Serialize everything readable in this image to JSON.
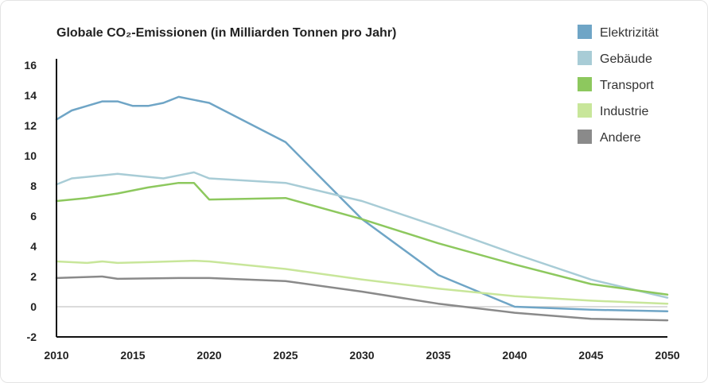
{
  "chart_data": {
    "type": "line",
    "title": "Globale CO₂-Emissionen (in Milliarden Tonnen pro Jahr)",
    "xlabel": "",
    "ylabel": "",
    "xlim": [
      2010,
      2050
    ],
    "ylim": [
      -2,
      16
    ],
    "x_ticks": [
      2010,
      2015,
      2020,
      2025,
      2030,
      2035,
      2040,
      2045,
      2050
    ],
    "y_ticks": [
      -2,
      0,
      2,
      4,
      6,
      8,
      10,
      12,
      14,
      16
    ],
    "grid": false,
    "legend_position": "top-right",
    "series": [
      {
        "name": "Elektrizität",
        "color": "#6fa5c6",
        "points": [
          [
            2010,
            12.4
          ],
          [
            2011,
            13.0
          ],
          [
            2012,
            13.3
          ],
          [
            2013,
            13.6
          ],
          [
            2014,
            13.6
          ],
          [
            2015,
            13.3
          ],
          [
            2016,
            13.3
          ],
          [
            2017,
            13.5
          ],
          [
            2018,
            13.9
          ],
          [
            2019,
            13.7
          ],
          [
            2020,
            13.5
          ],
          [
            2025,
            10.9
          ],
          [
            2030,
            5.8
          ],
          [
            2035,
            2.1
          ],
          [
            2040,
            0.0
          ],
          [
            2045,
            -0.2
          ],
          [
            2050,
            -0.3
          ]
        ]
      },
      {
        "name": "Gebäude",
        "color": "#a8ccd6",
        "points": [
          [
            2010,
            8.1
          ],
          [
            2011,
            8.5
          ],
          [
            2012,
            8.6
          ],
          [
            2013,
            8.7
          ],
          [
            2014,
            8.8
          ],
          [
            2015,
            8.7
          ],
          [
            2016,
            8.6
          ],
          [
            2017,
            8.5
          ],
          [
            2018,
            8.7
          ],
          [
            2019,
            8.9
          ],
          [
            2020,
            8.5
          ],
          [
            2025,
            8.2
          ],
          [
            2030,
            7.0
          ],
          [
            2035,
            5.3
          ],
          [
            2040,
            3.5
          ],
          [
            2045,
            1.8
          ],
          [
            2050,
            0.6
          ]
        ]
      },
      {
        "name": "Transport",
        "color": "#8dc85e",
        "points": [
          [
            2010,
            7.0
          ],
          [
            2012,
            7.2
          ],
          [
            2014,
            7.5
          ],
          [
            2016,
            7.9
          ],
          [
            2018,
            8.2
          ],
          [
            2019,
            8.2
          ],
          [
            2020,
            7.1
          ],
          [
            2025,
            7.2
          ],
          [
            2030,
            5.8
          ],
          [
            2035,
            4.2
          ],
          [
            2040,
            2.8
          ],
          [
            2045,
            1.5
          ],
          [
            2050,
            0.8
          ]
        ]
      },
      {
        "name": "Industrie",
        "color": "#c8e69a",
        "points": [
          [
            2010,
            3.0
          ],
          [
            2012,
            2.9
          ],
          [
            2013,
            3.0
          ],
          [
            2014,
            2.9
          ],
          [
            2016,
            2.95
          ],
          [
            2019,
            3.05
          ],
          [
            2020,
            3.0
          ],
          [
            2025,
            2.5
          ],
          [
            2030,
            1.8
          ],
          [
            2035,
            1.2
          ],
          [
            2040,
            0.7
          ],
          [
            2045,
            0.4
          ],
          [
            2050,
            0.2
          ]
        ]
      },
      {
        "name": "Andere",
        "color": "#8a8a8a",
        "points": [
          [
            2010,
            1.9
          ],
          [
            2013,
            2.0
          ],
          [
            2014,
            1.85
          ],
          [
            2018,
            1.9
          ],
          [
            2020,
            1.9
          ],
          [
            2025,
            1.7
          ],
          [
            2030,
            1.0
          ],
          [
            2035,
            0.2
          ],
          [
            2040,
            -0.4
          ],
          [
            2045,
            -0.8
          ],
          [
            2050,
            -0.9
          ]
        ]
      }
    ]
  }
}
